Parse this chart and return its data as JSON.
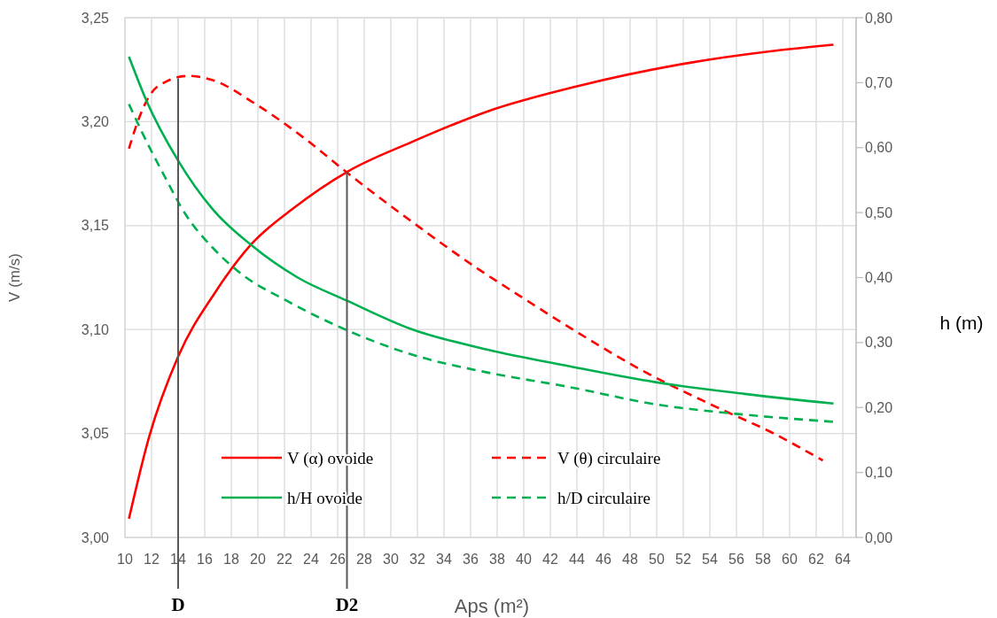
{
  "chart_data": {
    "type": "line",
    "xlabel": "Aps (m²)",
    "ylabel": "V (m/s)",
    "y2label": "h (m)",
    "xlim": [
      10,
      65
    ],
    "xticks": [
      10,
      12,
      14,
      16,
      18,
      20,
      22,
      24,
      26,
      28,
      30,
      32,
      34,
      36,
      38,
      40,
      42,
      44,
      46,
      48,
      50,
      52,
      54,
      56,
      58,
      60,
      62,
      64
    ],
    "ylim": [
      3,
      3.25
    ],
    "yticks": [
      {
        "value": 3,
        "label": "3,00"
      },
      {
        "value": 3.05,
        "label": "3,05"
      },
      {
        "value": 3.1,
        "label": "3,10"
      },
      {
        "value": 3.15,
        "label": "3,15"
      },
      {
        "value": 3.2,
        "label": "3,20"
      },
      {
        "value": 3.25,
        "label": "3,25"
      }
    ],
    "y2lim": [
      0,
      0.8
    ],
    "y2ticks": [
      {
        "value": 0,
        "label": "0,00"
      },
      {
        "value": 0.1,
        "label": "0,10"
      },
      {
        "value": 0.2,
        "label": "0,20"
      },
      {
        "value": 0.3,
        "label": "0,30"
      },
      {
        "value": 0.4,
        "label": "0,40"
      },
      {
        "value": 0.5,
        "label": "0,50"
      },
      {
        "value": 0.6,
        "label": "0,60"
      },
      {
        "value": 0.7,
        "label": "0,70"
      },
      {
        "value": 0.8,
        "label": "0,80"
      }
    ],
    "grid": true,
    "legend": "bottom",
    "marker": "none",
    "series": [
      {
        "name": "V (α) ovoide",
        "color": "#ff0000",
        "line_style": "solid",
        "x": [
          10.3,
          11.8,
          14,
          16.8,
          19.5,
          22.6,
          26.75,
          31.5,
          37.3,
          44,
          52.2,
          58.8,
          63.3
        ],
        "values": [
          3.009,
          3.048,
          3.087,
          3.118,
          3.141,
          3.158,
          3.176,
          3.19,
          3.205,
          3.217,
          3.228,
          3.234,
          3.237
        ]
      },
      {
        "name": "V (θ) circulaire",
        "color": "#ff0000",
        "line_style": "dashed",
        "x": [
          10.3,
          10.9,
          11.9,
          13,
          14.8,
          16.6,
          19.7,
          23.5,
          27,
          32.2,
          36.6,
          39.5,
          44.2,
          49,
          54.4,
          58.8,
          62.5
        ],
        "values": [
          3.187,
          3.199,
          3.213,
          3.219,
          3.222,
          3.22,
          3.209,
          3.192,
          3.174,
          3.149,
          3.129,
          3.117,
          3.098,
          3.08,
          3.063,
          3.05,
          3.037
        ]
      },
      {
        "name": "h/H ovoide",
        "color": "#00b050",
        "line_style": "solid",
        "axis": "y2",
        "x": [
          10.3,
          11.6,
          14,
          16.6,
          19.5,
          23,
          26.75,
          31.5,
          37.3,
          43.3,
          49.9,
          56.6,
          63.3
        ],
        "values": [
          0.74,
          0.673,
          0.58,
          0.505,
          0.45,
          0.4,
          0.364,
          0.321,
          0.289,
          0.264,
          0.239,
          0.221,
          0.206
        ]
      },
      {
        "name": "h/D circulaire",
        "color": "#00b050",
        "line_style": "dashed",
        "axis": "y2",
        "x": [
          10.3,
          11.3,
          12.9,
          14.6,
          16.6,
          18.8,
          22.2,
          26.8,
          31.5,
          37,
          43.3,
          49.9,
          56.6,
          63.3
        ],
        "values": [
          0.667,
          0.623,
          0.559,
          0.496,
          0.446,
          0.405,
          0.364,
          0.318,
          0.282,
          0.255,
          0.232,
          0.205,
          0.189,
          0.178
        ]
      }
    ],
    "ref_lines": [
      {
        "axis": "x",
        "value": 14,
        "label": "D",
        "color": "#595959",
        "line_style": "solid"
      },
      {
        "axis": "x",
        "value": 26.7,
        "label": "D2",
        "color": "#595959",
        "line_style": "solid"
      }
    ]
  }
}
